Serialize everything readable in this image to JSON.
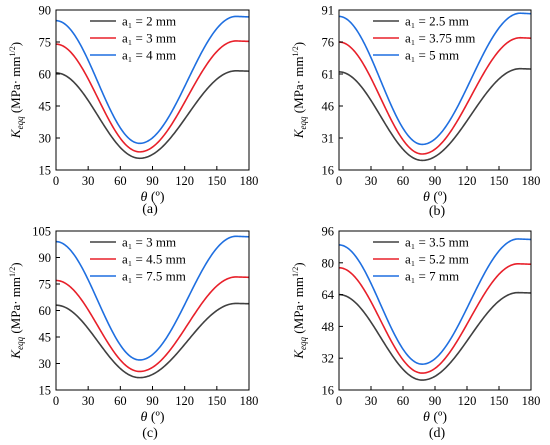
{
  "colors": {
    "series1": "#404040",
    "series2": "#e8202a",
    "series3": "#1f6fe0"
  },
  "chart_data": [
    {
      "type": "line",
      "caption": "(a)",
      "xlabel_symbol": "θ",
      "xlabel_unit": "(º)",
      "ylabel_symbol": "K",
      "ylabel_sub": "eqq",
      "ylabel_unit": "(MPa· mm",
      "ylabel_exp": "1/2",
      "ylabel_close": ")",
      "xlim": [
        0,
        180
      ],
      "ylim": [
        15,
        90
      ],
      "xticks": [
        "0",
        "30",
        "60",
        "90",
        "120",
        "150",
        "180"
      ],
      "yticks": [
        "15",
        "30",
        "45",
        "60",
        "75",
        "90"
      ],
      "legend_position": "top-left",
      "series": [
        {
          "name": "a₁ = 2 mm",
          "min": 20.5,
          "left": 60.5,
          "right": 61.5,
          "peak_x": 168
        },
        {
          "name": "a₁ = 3 mm",
          "min": 23.5,
          "left": 74,
          "right": 75.5,
          "peak_x": 168
        },
        {
          "name": "a₁ = 4 mm",
          "min": 27.5,
          "left": 85,
          "right": 87,
          "peak_x": 168
        }
      ]
    },
    {
      "type": "line",
      "caption": "(b)",
      "xlabel_symbol": "θ",
      "xlabel_unit": "(º)",
      "ylabel_symbol": "K",
      "ylabel_sub": "eqq",
      "ylabel_unit": "(MPa· mm",
      "ylabel_exp": "1/2",
      "ylabel_close": ")",
      "xlim": [
        0,
        180
      ],
      "ylim": [
        16,
        91
      ],
      "xticks": [
        "0",
        "30",
        "60",
        "90",
        "120",
        "150",
        "180"
      ],
      "yticks": [
        "16",
        "31",
        "46",
        "61",
        "76",
        "91"
      ],
      "legend_position": "top-left",
      "series": [
        {
          "name": "a₁ = 2.5 mm",
          "min": 20.5,
          "left": 62,
          "right": 63.5,
          "peak_x": 170
        },
        {
          "name": "a₁ = 3.75 mm",
          "min": 23.5,
          "left": 76,
          "right": 78,
          "peak_x": 170
        },
        {
          "name": "a₁ = 5 mm",
          "min": 28,
          "left": 88,
          "right": 89.5,
          "peak_x": 170
        }
      ]
    },
    {
      "type": "line",
      "caption": "(c)",
      "xlabel_symbol": "θ",
      "xlabel_unit": "(º)",
      "ylabel_symbol": "K",
      "ylabel_sub": "eqq",
      "ylabel_unit": "(MPa· mm",
      "ylabel_exp": "1/2",
      "ylabel_close": ")",
      "xlim": [
        0,
        180
      ],
      "ylim": [
        15,
        105
      ],
      "xticks": [
        "0",
        "30",
        "60",
        "90",
        "120",
        "150",
        "180"
      ],
      "yticks": [
        "15",
        "30",
        "45",
        "60",
        "75",
        "90",
        "105"
      ],
      "legend_position": "top-left",
      "series": [
        {
          "name": "a₁ = 3 mm",
          "min": 22,
          "left": 63,
          "right": 64,
          "peak_x": 168
        },
        {
          "name": "a₁ = 4.5 mm",
          "min": 25.5,
          "left": 77,
          "right": 79,
          "peak_x": 168
        },
        {
          "name": "a₁ = 7.5 mm",
          "min": 32,
          "left": 99,
          "right": 102,
          "peak_x": 168
        }
      ]
    },
    {
      "type": "line",
      "caption": "(d)",
      "xlabel_symbol": "θ",
      "xlabel_unit": "(º)",
      "ylabel_symbol": "K",
      "ylabel_sub": "eqq",
      "ylabel_unit": "(MPa· mm",
      "ylabel_exp": "1/2",
      "ylabel_close": ")",
      "xlim": [
        0,
        180
      ],
      "ylim": [
        16,
        96
      ],
      "xticks": [
        "0",
        "30",
        "60",
        "90",
        "120",
        "150",
        "180"
      ],
      "yticks": [
        "16",
        "32",
        "48",
        "64",
        "80",
        "96"
      ],
      "legend_position": "top-left",
      "series": [
        {
          "name": "a₁ = 3.5 mm",
          "min": 21,
          "left": 64,
          "right": 65,
          "peak_x": 168
        },
        {
          "name": "a₁ = 5.2 mm",
          "min": 24.5,
          "left": 77.5,
          "right": 79.5,
          "peak_x": 168
        },
        {
          "name": "a₁ = 7 mm",
          "min": 29,
          "left": 89,
          "right": 92,
          "peak_x": 168
        }
      ]
    }
  ]
}
